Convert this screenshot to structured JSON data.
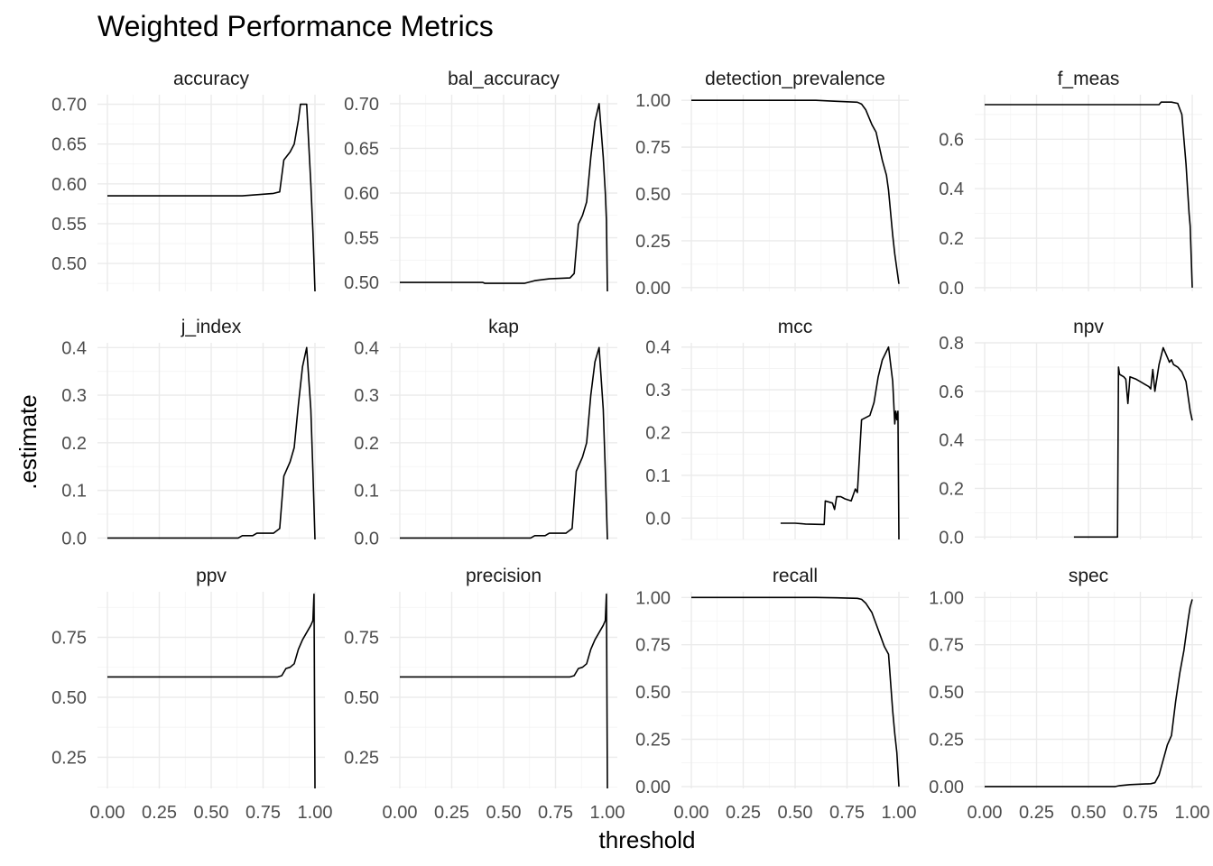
{
  "chart_data": {
    "type": "line",
    "title": "Weighted Performance Metrics",
    "xlabel": "threshold",
    "ylabel": ".estimate",
    "x_ticks": [
      "0.00",
      "0.25",
      "0.50",
      "0.75",
      "1.00"
    ],
    "x_range": [
      0,
      1
    ],
    "grid": true,
    "facets": [
      {
        "name": "accuracy",
        "ylim": [
          0.465,
          0.712
        ],
        "y_ticks": [
          {
            "v": 0.5,
            "label": "0.50"
          },
          {
            "v": 0.55,
            "label": "0.55"
          },
          {
            "v": 0.6,
            "label": "0.60"
          },
          {
            "v": 0.65,
            "label": "0.65"
          },
          {
            "v": 0.7,
            "label": "0.70"
          }
        ],
        "points": [
          [
            0,
            0.585
          ],
          [
            0.65,
            0.585
          ],
          [
            0.7,
            0.586
          ],
          [
            0.75,
            0.587
          ],
          [
            0.8,
            0.588
          ],
          [
            0.83,
            0.59
          ],
          [
            0.85,
            0.63
          ],
          [
            0.88,
            0.64
          ],
          [
            0.9,
            0.65
          ],
          [
            0.92,
            0.68
          ],
          [
            0.93,
            0.7
          ],
          [
            0.96,
            0.7
          ],
          [
            0.98,
            0.6
          ],
          [
            0.99,
            0.54
          ],
          [
            1.0,
            0.465
          ]
        ]
      },
      {
        "name": "bal_accuracy",
        "ylim": [
          0.49,
          0.71
        ],
        "y_ticks": [
          {
            "v": 0.5,
            "label": "0.50"
          },
          {
            "v": 0.55,
            "label": "0.55"
          },
          {
            "v": 0.6,
            "label": "0.60"
          },
          {
            "v": 0.65,
            "label": "0.65"
          },
          {
            "v": 0.7,
            "label": "0.70"
          }
        ],
        "points": [
          [
            0,
            0.5
          ],
          [
            0.4,
            0.5
          ],
          [
            0.41,
            0.499
          ],
          [
            0.6,
            0.499
          ],
          [
            0.65,
            0.502
          ],
          [
            0.72,
            0.504
          ],
          [
            0.82,
            0.505
          ],
          [
            0.84,
            0.51
          ],
          [
            0.86,
            0.565
          ],
          [
            0.88,
            0.575
          ],
          [
            0.9,
            0.59
          ],
          [
            0.92,
            0.64
          ],
          [
            0.94,
            0.68
          ],
          [
            0.95,
            0.69
          ],
          [
            0.96,
            0.7
          ],
          [
            0.98,
            0.64
          ],
          [
            0.99,
            0.6
          ],
          [
            0.995,
            0.57
          ],
          [
            1.0,
            0.49
          ]
        ]
      },
      {
        "name": "detection_prevalence",
        "ylim": [
          -0.02,
          1.03
        ],
        "y_ticks": [
          {
            "v": 0,
            "label": "0.00"
          },
          {
            "v": 0.25,
            "label": "0.25"
          },
          {
            "v": 0.5,
            "label": "0.50"
          },
          {
            "v": 0.75,
            "label": "0.75"
          },
          {
            "v": 1.0,
            "label": "1.00"
          }
        ],
        "points": [
          [
            0,
            1.0
          ],
          [
            0.6,
            1.0
          ],
          [
            0.7,
            0.995
          ],
          [
            0.8,
            0.99
          ],
          [
            0.82,
            0.98
          ],
          [
            0.84,
            0.95
          ],
          [
            0.87,
            0.87
          ],
          [
            0.89,
            0.83
          ],
          [
            0.9,
            0.78
          ],
          [
            0.92,
            0.68
          ],
          [
            0.94,
            0.6
          ],
          [
            0.95,
            0.52
          ],
          [
            0.96,
            0.4
          ],
          [
            0.97,
            0.28
          ],
          [
            0.98,
            0.18
          ],
          [
            0.99,
            0.1
          ],
          [
            1.0,
            0.02
          ]
        ]
      },
      {
        "name": "f_meas",
        "ylim": [
          -0.015,
          0.78
        ],
        "y_ticks": [
          {
            "v": 0,
            "label": "0.0"
          },
          {
            "v": 0.2,
            "label": "0.2"
          },
          {
            "v": 0.4,
            "label": "0.4"
          },
          {
            "v": 0.6,
            "label": "0.6"
          }
        ],
        "points": [
          [
            0,
            0.74
          ],
          [
            0.84,
            0.74
          ],
          [
            0.85,
            0.75
          ],
          [
            0.9,
            0.75
          ],
          [
            0.93,
            0.745
          ],
          [
            0.95,
            0.7
          ],
          [
            0.97,
            0.5
          ],
          [
            0.985,
            0.3
          ],
          [
            0.99,
            0.25
          ],
          [
            1.0,
            0.0
          ]
        ]
      },
      {
        "name": "j_index",
        "ylim": [
          -0.003,
          0.41
        ],
        "y_ticks": [
          {
            "v": 0,
            "label": "0.0"
          },
          {
            "v": 0.1,
            "label": "0.1"
          },
          {
            "v": 0.2,
            "label": "0.2"
          },
          {
            "v": 0.3,
            "label": "0.3"
          },
          {
            "v": 0.4,
            "label": "0.4"
          }
        ],
        "points": [
          [
            0,
            0.0
          ],
          [
            0.63,
            0.0
          ],
          [
            0.65,
            0.005
          ],
          [
            0.7,
            0.005
          ],
          [
            0.72,
            0.01
          ],
          [
            0.8,
            0.01
          ],
          [
            0.83,
            0.02
          ],
          [
            0.85,
            0.13
          ],
          [
            0.88,
            0.16
          ],
          [
            0.9,
            0.19
          ],
          [
            0.92,
            0.28
          ],
          [
            0.94,
            0.36
          ],
          [
            0.96,
            0.4
          ],
          [
            0.98,
            0.27
          ],
          [
            0.99,
            0.14
          ],
          [
            1.0,
            -0.003
          ]
        ]
      },
      {
        "name": "kap",
        "ylim": [
          -0.003,
          0.41
        ],
        "y_ticks": [
          {
            "v": 0,
            "label": "0.0"
          },
          {
            "v": 0.1,
            "label": "0.1"
          },
          {
            "v": 0.2,
            "label": "0.2"
          },
          {
            "v": 0.3,
            "label": "0.3"
          },
          {
            "v": 0.4,
            "label": "0.4"
          }
        ],
        "points": [
          [
            0,
            0.0
          ],
          [
            0.63,
            0.0
          ],
          [
            0.65,
            0.005
          ],
          [
            0.7,
            0.005
          ],
          [
            0.72,
            0.01
          ],
          [
            0.8,
            0.01
          ],
          [
            0.83,
            0.02
          ],
          [
            0.85,
            0.14
          ],
          [
            0.88,
            0.17
          ],
          [
            0.9,
            0.2
          ],
          [
            0.92,
            0.3
          ],
          [
            0.94,
            0.37
          ],
          [
            0.96,
            0.4
          ],
          [
            0.98,
            0.27
          ],
          [
            0.99,
            0.14
          ],
          [
            1.0,
            -0.003
          ]
        ]
      },
      {
        "name": "mcc",
        "ylim": [
          -0.05,
          0.41
        ],
        "y_ticks": [
          {
            "v": 0,
            "label": "0.0"
          },
          {
            "v": 0.1,
            "label": "0.1"
          },
          {
            "v": 0.2,
            "label": "0.2"
          },
          {
            "v": 0.3,
            "label": "0.3"
          },
          {
            "v": 0.4,
            "label": "0.4"
          }
        ],
        "points": [
          [
            0.43,
            -0.012
          ],
          [
            0.5,
            -0.012
          ],
          [
            0.55,
            -0.014
          ],
          [
            0.64,
            -0.015
          ],
          [
            0.645,
            0.04
          ],
          [
            0.68,
            0.035
          ],
          [
            0.69,
            0.02
          ],
          [
            0.7,
            0.05
          ],
          [
            0.72,
            0.05
          ],
          [
            0.74,
            0.045
          ],
          [
            0.77,
            0.04
          ],
          [
            0.79,
            0.068
          ],
          [
            0.8,
            0.06
          ],
          [
            0.82,
            0.23
          ],
          [
            0.86,
            0.24
          ],
          [
            0.88,
            0.27
          ],
          [
            0.9,
            0.33
          ],
          [
            0.92,
            0.37
          ],
          [
            0.94,
            0.39
          ],
          [
            0.95,
            0.4
          ],
          [
            0.97,
            0.32
          ],
          [
            0.98,
            0.22
          ],
          [
            0.985,
            0.25
          ],
          [
            0.99,
            0.23
          ],
          [
            0.995,
            0.25
          ],
          [
            1.0,
            -0.05
          ]
        ]
      },
      {
        "name": "npv",
        "ylim": [
          -0.01,
          0.8
        ],
        "y_ticks": [
          {
            "v": 0,
            "label": "0.0"
          },
          {
            "v": 0.2,
            "label": "0.2"
          },
          {
            "v": 0.4,
            "label": "0.4"
          },
          {
            "v": 0.6,
            "label": "0.6"
          },
          {
            "v": 0.8,
            "label": "0.8"
          }
        ],
        "points": [
          [
            0.43,
            0.0
          ],
          [
            0.64,
            0.0
          ],
          [
            0.645,
            0.7
          ],
          [
            0.65,
            0.67
          ],
          [
            0.67,
            0.66
          ],
          [
            0.68,
            0.65
          ],
          [
            0.69,
            0.55
          ],
          [
            0.7,
            0.66
          ],
          [
            0.73,
            0.65
          ],
          [
            0.75,
            0.64
          ],
          [
            0.77,
            0.63
          ],
          [
            0.79,
            0.62
          ],
          [
            0.8,
            0.61
          ],
          [
            0.81,
            0.69
          ],
          [
            0.82,
            0.6
          ],
          [
            0.84,
            0.71
          ],
          [
            0.86,
            0.78
          ],
          [
            0.88,
            0.74
          ],
          [
            0.89,
            0.72
          ],
          [
            0.9,
            0.73
          ],
          [
            0.91,
            0.71
          ],
          [
            0.93,
            0.7
          ],
          [
            0.95,
            0.68
          ],
          [
            0.97,
            0.64
          ],
          [
            0.99,
            0.52
          ],
          [
            1.0,
            0.48
          ]
        ]
      },
      {
        "name": "ppv",
        "ylim": [
          0.12,
          0.94
        ],
        "y_ticks": [
          {
            "v": 0.25,
            "label": "0.25"
          },
          {
            "v": 0.5,
            "label": "0.50"
          },
          {
            "v": 0.75,
            "label": "0.75"
          }
        ],
        "points": [
          [
            0,
            0.585
          ],
          [
            0.6,
            0.585
          ],
          [
            0.82,
            0.585
          ],
          [
            0.84,
            0.59
          ],
          [
            0.86,
            0.62
          ],
          [
            0.88,
            0.625
          ],
          [
            0.9,
            0.64
          ],
          [
            0.92,
            0.7
          ],
          [
            0.94,
            0.74
          ],
          [
            0.96,
            0.77
          ],
          [
            0.98,
            0.8
          ],
          [
            0.99,
            0.82
          ],
          [
            0.995,
            0.93
          ],
          [
            1.0,
            0.12
          ]
        ]
      },
      {
        "name": "precision",
        "ylim": [
          0.12,
          0.94
        ],
        "y_ticks": [
          {
            "v": 0.25,
            "label": "0.25"
          },
          {
            "v": 0.5,
            "label": "0.50"
          },
          {
            "v": 0.75,
            "label": "0.75"
          }
        ],
        "points": [
          [
            0,
            0.585
          ],
          [
            0.6,
            0.585
          ],
          [
            0.82,
            0.585
          ],
          [
            0.84,
            0.59
          ],
          [
            0.86,
            0.62
          ],
          [
            0.88,
            0.625
          ],
          [
            0.9,
            0.64
          ],
          [
            0.92,
            0.7
          ],
          [
            0.94,
            0.74
          ],
          [
            0.96,
            0.77
          ],
          [
            0.98,
            0.8
          ],
          [
            0.99,
            0.82
          ],
          [
            0.995,
            0.93
          ],
          [
            1.0,
            0.12
          ]
        ]
      },
      {
        "name": "recall",
        "ylim": [
          -0.01,
          1.03
        ],
        "y_ticks": [
          {
            "v": 0,
            "label": "0.00"
          },
          {
            "v": 0.25,
            "label": "0.25"
          },
          {
            "v": 0.5,
            "label": "0.50"
          },
          {
            "v": 0.75,
            "label": "0.75"
          },
          {
            "v": 1.0,
            "label": "1.00"
          }
        ],
        "points": [
          [
            0,
            1.0
          ],
          [
            0.6,
            1.0
          ],
          [
            0.7,
            0.998
          ],
          [
            0.8,
            0.995
          ],
          [
            0.82,
            0.99
          ],
          [
            0.84,
            0.97
          ],
          [
            0.87,
            0.92
          ],
          [
            0.89,
            0.86
          ],
          [
            0.91,
            0.8
          ],
          [
            0.93,
            0.74
          ],
          [
            0.95,
            0.7
          ],
          [
            0.96,
            0.55
          ],
          [
            0.97,
            0.4
          ],
          [
            0.98,
            0.28
          ],
          [
            0.99,
            0.18
          ],
          [
            1.0,
            0.0
          ]
        ]
      },
      {
        "name": "spec",
        "ylim": [
          -0.01,
          1.03
        ],
        "y_ticks": [
          {
            "v": 0,
            "label": "0.00"
          },
          {
            "v": 0.25,
            "label": "0.25"
          },
          {
            "v": 0.5,
            "label": "0.50"
          },
          {
            "v": 0.75,
            "label": "0.75"
          },
          {
            "v": 1.0,
            "label": "1.00"
          }
        ],
        "points": [
          [
            0,
            0.0
          ],
          [
            0.63,
            0.0
          ],
          [
            0.65,
            0.005
          ],
          [
            0.7,
            0.01
          ],
          [
            0.8,
            0.015
          ],
          [
            0.82,
            0.02
          ],
          [
            0.84,
            0.06
          ],
          [
            0.86,
            0.14
          ],
          [
            0.88,
            0.22
          ],
          [
            0.9,
            0.27
          ],
          [
            0.92,
            0.45
          ],
          [
            0.94,
            0.6
          ],
          [
            0.96,
            0.72
          ],
          [
            0.98,
            0.88
          ],
          [
            0.99,
            0.95
          ],
          [
            1.0,
            0.99
          ]
        ]
      }
    ]
  }
}
